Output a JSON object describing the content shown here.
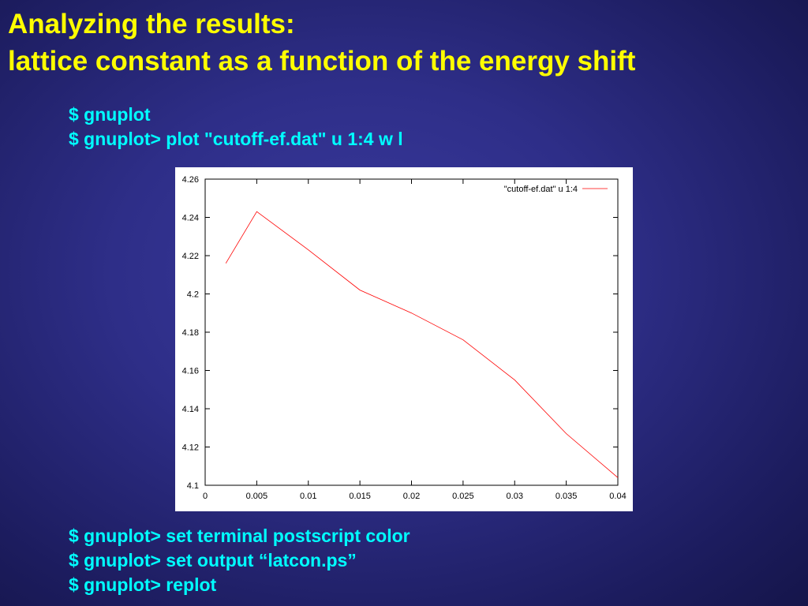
{
  "slide": {
    "title_line1": "Analyzing the results:",
    "title_line2": "lattice constant as a function of the energy shift",
    "commands_top": [
      "$ gnuplot",
      "$ gnuplot> plot \"cutoff-ef.dat\" u 1:4 w l"
    ],
    "commands_bottom": [
      "$ gnuplot> set terminal postscript color",
      "$ gnuplot> set output “latcon.ps”",
      "$ gnuplot> replot"
    ]
  },
  "colors": {
    "title": "#ffff00",
    "command_text": "#00ffff",
    "series_line": "#ff0000",
    "plot_background": "#ffffff"
  },
  "chart_data": {
    "type": "line",
    "title": "",
    "xlabel": "",
    "ylabel": "",
    "xlim": [
      0,
      0.04
    ],
    "ylim": [
      4.1,
      4.26
    ],
    "x_ticks": [
      0,
      0.005,
      0.01,
      0.015,
      0.02,
      0.025,
      0.03,
      0.035,
      0.04
    ],
    "x_tick_labels": [
      "0",
      "0.005",
      "0.01",
      "0.015",
      "0.02",
      "0.025",
      "0.03",
      "0.035",
      "0.04"
    ],
    "y_ticks": [
      4.1,
      4.12,
      4.14,
      4.16,
      4.18,
      4.2,
      4.22,
      4.24,
      4.26
    ],
    "y_tick_labels": [
      "4.1",
      "4.12",
      "4.14",
      "4.16",
      "4.18",
      "4.2",
      "4.22",
      "4.24",
      "4.26"
    ],
    "grid": false,
    "legend_position": "top-right",
    "series": [
      {
        "name": "\"cutoff-ef.dat\" u 1:4",
        "x": [
          0.002,
          0.005,
          0.01,
          0.015,
          0.02,
          0.025,
          0.03,
          0.035,
          0.04
        ],
        "values": [
          4.216,
          4.243,
          4.223,
          4.202,
          4.19,
          4.176,
          4.155,
          4.127,
          4.104
        ]
      }
    ]
  }
}
